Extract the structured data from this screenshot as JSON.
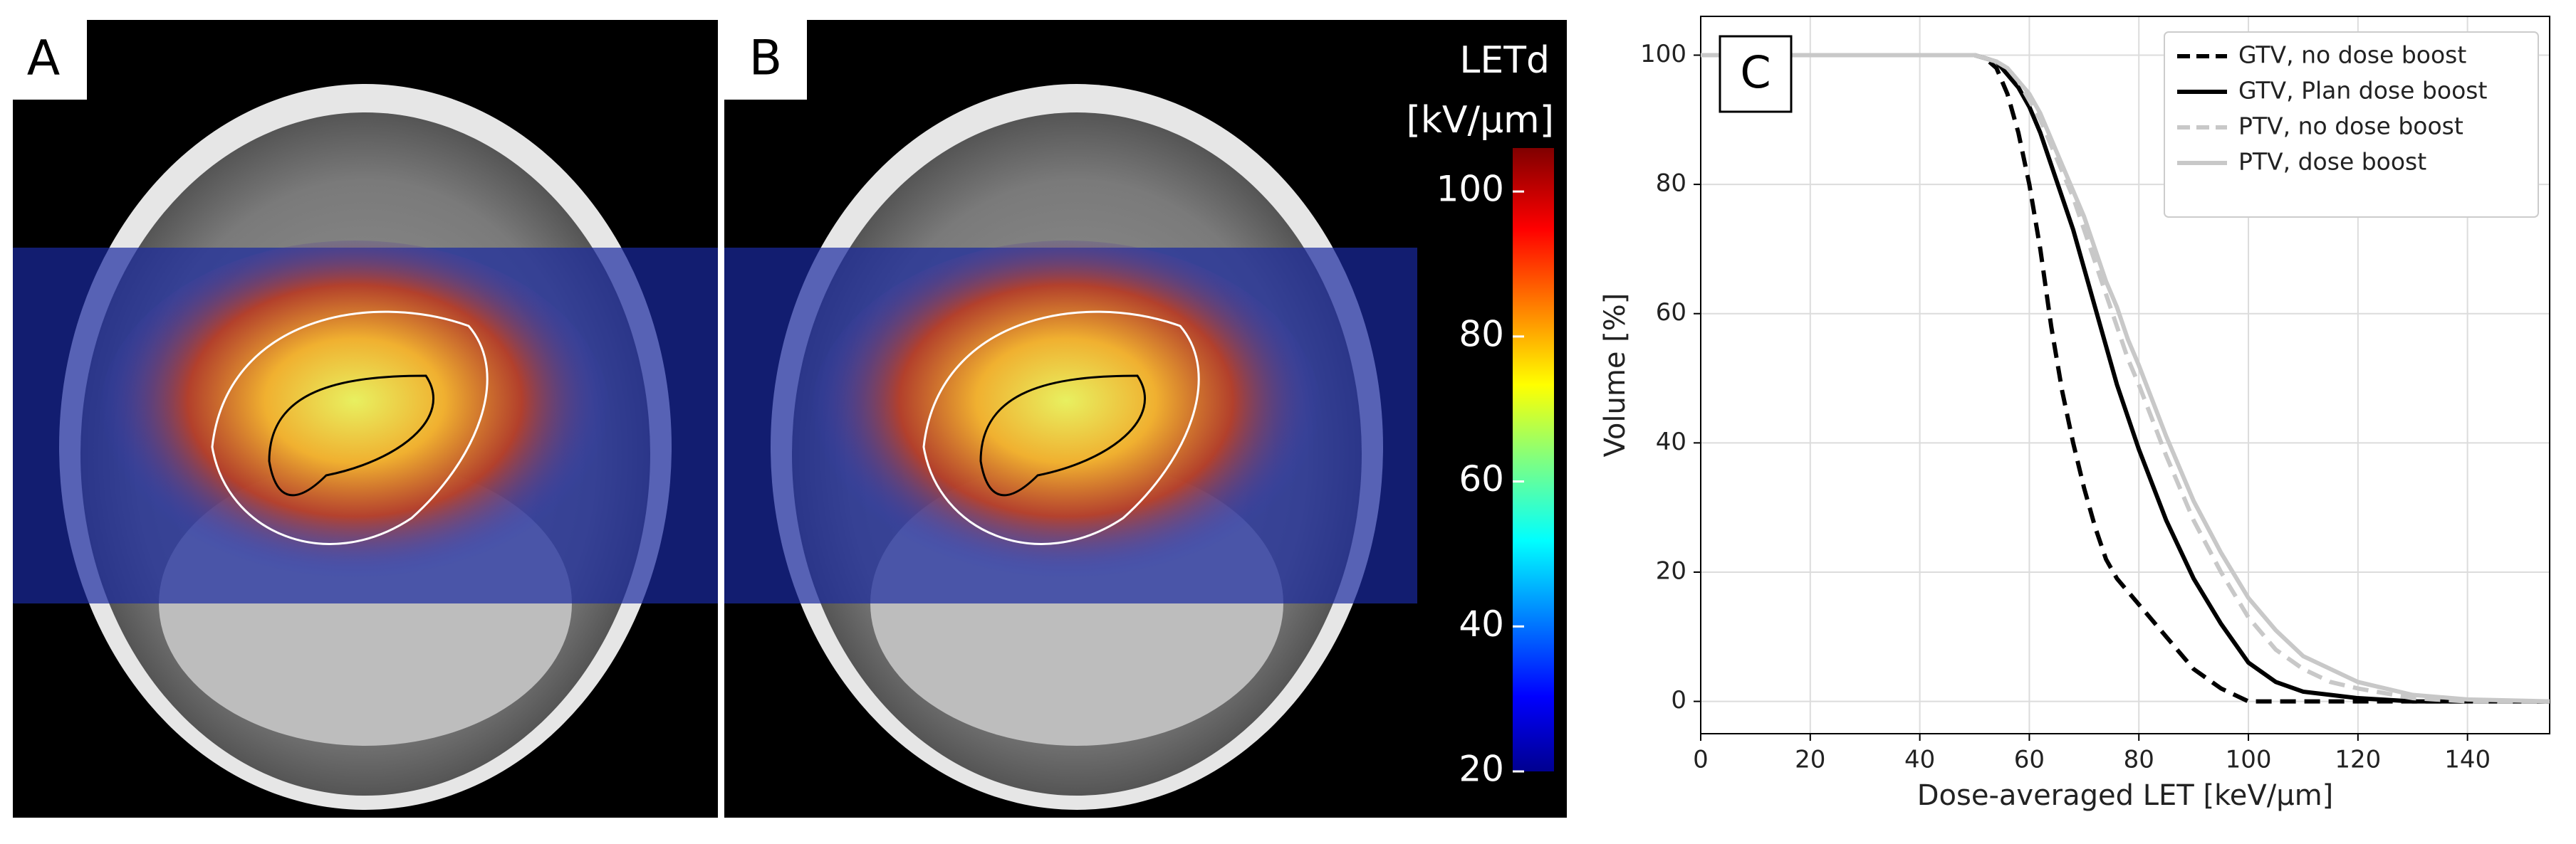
{
  "images": [
    {
      "label": "A"
    },
    {
      "label": "B"
    }
  ],
  "colorbar": {
    "title_lines": [
      "LETd",
      "[kV/μm]"
    ],
    "lim": [
      20,
      106
    ],
    "ticks": [
      20,
      40,
      60,
      80,
      100
    ]
  },
  "chart_data": {
    "type": "line",
    "panel_label": "C",
    "xlabel": "Dose-averaged LET [keV/μm]",
    "ylabel": "Volume [%]",
    "x": [
      0,
      50,
      52,
      54,
      56,
      58,
      60,
      62,
      64,
      66,
      68,
      70,
      72,
      74,
      76,
      78,
      80,
      85,
      90,
      95,
      100,
      105,
      110,
      115,
      120,
      130,
      140,
      155
    ],
    "series": [
      {
        "name": "GTV, no dose boost",
        "color": "#000000",
        "dashed": true,
        "values": [
          100,
          100,
          99.5,
          98,
          94,
          88,
          80,
          70,
          58,
          48,
          40,
          33,
          27,
          22,
          19,
          17,
          15,
          10,
          5,
          2,
          0,
          0,
          0,
          0,
          0,
          0,
          0,
          0
        ]
      },
      {
        "name": "GTV, Plan dose boost",
        "color": "#000000",
        "dashed": false,
        "values": [
          100,
          100,
          99.5,
          99,
          97,
          95,
          92,
          88,
          83,
          78,
          73,
          67,
          61,
          55,
          49,
          44,
          39,
          28,
          19,
          12,
          6,
          3,
          1.5,
          1,
          0.5,
          0,
          0,
          0
        ]
      },
      {
        "name": "PTV, no dose boost",
        "color": "#c8c8c8",
        "dashed": true,
        "values": [
          100,
          100,
          99.5,
          99,
          98,
          96,
          93,
          90,
          86,
          82,
          78,
          73,
          68,
          63,
          58,
          53,
          49,
          38,
          28,
          20,
          13,
          8,
          5,
          3,
          2,
          0.5,
          0,
          0
        ]
      },
      {
        "name": "PTV, dose boost",
        "color": "#c8c8c8",
        "dashed": false,
        "values": [
          100,
          100,
          99.5,
          99,
          98,
          96,
          94,
          91,
          87,
          83,
          79,
          75,
          70,
          65,
          61,
          56,
          52,
          41,
          31,
          23,
          16,
          11,
          7,
          5,
          3,
          1,
          0.3,
          0
        ]
      }
    ],
    "xlim": [
      0,
      155
    ],
    "ylim": [
      -5,
      106
    ],
    "xticks": [
      0,
      20,
      40,
      60,
      80,
      100,
      120,
      140
    ],
    "yticks": [
      0,
      20,
      40,
      60,
      80,
      100
    ],
    "grid": true,
    "legend": "upper right"
  }
}
